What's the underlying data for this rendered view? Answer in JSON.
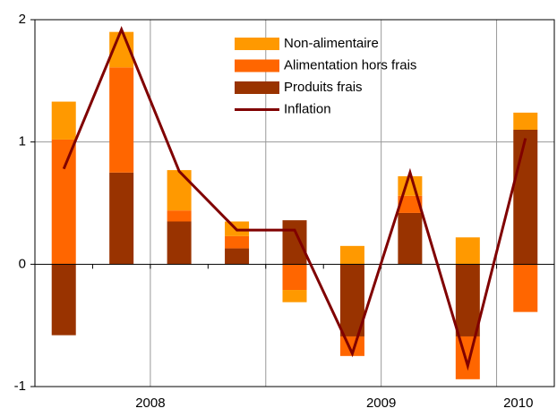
{
  "chart_data": {
    "type": "bar",
    "categories": [
      null,
      null,
      "2008",
      null,
      null,
      null,
      "2009",
      null,
      "2010"
    ],
    "series": [
      {
        "name": "Non-alimentaire",
        "color": "#ff9900",
        "values": [
          0.31,
          0.29,
          0.33,
          0.12,
          -0.1,
          0.15,
          0.16,
          0.22,
          0.14
        ]
      },
      {
        "name": "Alimentation hors frais",
        "color": "#ff6600",
        "values": [
          1.02,
          0.86,
          0.09,
          0.1,
          -0.21,
          -0.16,
          0.14,
          -0.35,
          -0.39
        ]
      },
      {
        "name": "Produits frais",
        "color": "#993300",
        "values": [
          -0.58,
          0.75,
          0.35,
          0.13,
          0.36,
          -0.59,
          0.42,
          -0.59,
          1.1
        ]
      },
      {
        "name": "Inflation",
        "color": "#800000",
        "type": "line",
        "values": [
          0.78,
          1.92,
          0.76,
          0.28,
          0.28,
          -0.73,
          0.75,
          -0.83,
          1.03
        ]
      }
    ],
    "ylim": [
      -1,
      2
    ],
    "yticks": [
      -1,
      0,
      1,
      2
    ],
    "grid": true
  }
}
